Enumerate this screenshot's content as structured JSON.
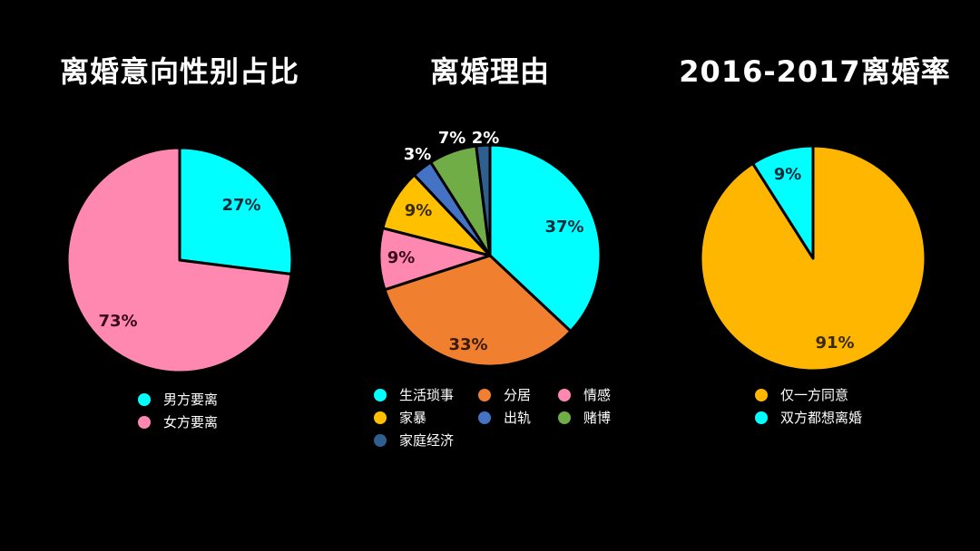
{
  "chart_data": [
    {
      "type": "pie",
      "title": "离婚意向性别占比",
      "categories": [
        "男方要离",
        "女方要离"
      ],
      "values": [
        27,
        73
      ],
      "labels": [
        "27%",
        "73%"
      ],
      "colors": [
        "#00FFFF",
        "#FF88B0"
      ],
      "legend_position": "bottom"
    },
    {
      "type": "pie",
      "title": "离婚理由",
      "categories": [
        "生活琐事",
        "分居",
        "情感",
        "家暴",
        "出轨",
        "赌博",
        "家庭经济"
      ],
      "values": [
        37,
        33,
        9,
        9,
        3,
        7,
        2
      ],
      "labels": [
        "37%",
        "33%",
        "9%",
        "9%",
        "3%",
        "7%",
        "2%"
      ],
      "colors": [
        "#00FFFF",
        "#F08030",
        "#FF88B0",
        "#FFC000",
        "#4472C4",
        "#70AD47",
        "#2E5F8F"
      ],
      "legend_position": "bottom"
    },
    {
      "type": "pie",
      "title": "2016-2017离婚率",
      "categories": [
        "仅一方同意",
        "双方都想离婚"
      ],
      "values": [
        91,
        9
      ],
      "labels": [
        "91%",
        "9%"
      ],
      "colors": [
        "#FFB600",
        "#00FFFF"
      ],
      "legend_position": "bottom"
    }
  ],
  "charts": {
    "c1": {
      "title": "离婚意向性别占比",
      "labels": [
        "27%",
        "73%"
      ],
      "legend": [
        "男方要离",
        "女方要离"
      ]
    },
    "c2": {
      "title": "离婚理由",
      "labels": [
        "37%",
        "33%",
        "9%",
        "9%",
        "3%",
        "7%",
        "2%"
      ],
      "legend": [
        "生活琐事",
        "分居",
        "情感",
        "家暴",
        "出轨",
        "赌博",
        "家庭经济"
      ]
    },
    "c3": {
      "title": "2016-2017离婚率",
      "labels": [
        "91%",
        "9%"
      ],
      "legend": [
        "仅一方同意",
        "双方都想离婚"
      ]
    }
  }
}
